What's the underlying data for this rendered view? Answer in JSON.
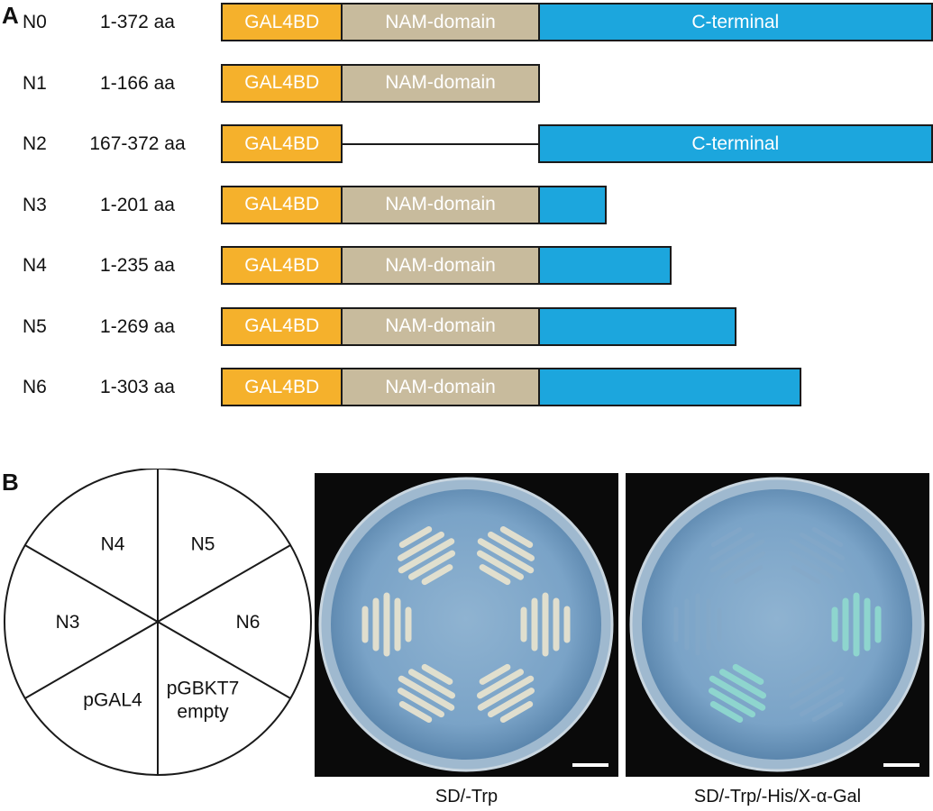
{
  "panel_a": {
    "letter": "A",
    "domain_colors": {
      "gal4bd": "#f5b12c",
      "nam": "#c8bb9d",
      "cterm": "#1ca6dd"
    },
    "constructs": [
      {
        "name": "N0",
        "range": "1-372 aa",
        "segments": [
          {
            "kind": "gal4bd",
            "label": "GAL4BD",
            "start": 0,
            "end": 63
          },
          {
            "kind": "nam",
            "label": "NAM-domain",
            "start": 63,
            "end": 166
          },
          {
            "kind": "cterm",
            "label": "C-terminal",
            "start": 166,
            "end": 372
          }
        ]
      },
      {
        "name": "N1",
        "range": "1-166 aa",
        "segments": [
          {
            "kind": "gal4bd",
            "label": "GAL4BD",
            "start": 0,
            "end": 63
          },
          {
            "kind": "nam",
            "label": "NAM-domain",
            "start": 63,
            "end": 166
          }
        ]
      },
      {
        "name": "N2",
        "range": "167-372 aa",
        "segments": [
          {
            "kind": "gal4bd",
            "label": "GAL4BD",
            "start": 0,
            "end": 63
          },
          {
            "kind": "linker",
            "label": "",
            "start": 63,
            "end": 166
          },
          {
            "kind": "cterm",
            "label": "C-terminal",
            "start": 166,
            "end": 372
          }
        ]
      },
      {
        "name": "N3",
        "range": "1-201 aa",
        "segments": [
          {
            "kind": "gal4bd",
            "label": "GAL4BD",
            "start": 0,
            "end": 63
          },
          {
            "kind": "nam",
            "label": "NAM-domain",
            "start": 63,
            "end": 166
          },
          {
            "kind": "cterm",
            "label": "",
            "start": 166,
            "end": 201
          }
        ]
      },
      {
        "name": "N4",
        "range": "1-235 aa",
        "segments": [
          {
            "kind": "gal4bd",
            "label": "GAL4BD",
            "start": 0,
            "end": 63
          },
          {
            "kind": "nam",
            "label": "NAM-domain",
            "start": 63,
            "end": 166
          },
          {
            "kind": "cterm",
            "label": "",
            "start": 166,
            "end": 235
          }
        ]
      },
      {
        "name": "N5",
        "range": "1-269 aa",
        "segments": [
          {
            "kind": "gal4bd",
            "label": "GAL4BD",
            "start": 0,
            "end": 63
          },
          {
            "kind": "nam",
            "label": "NAM-domain",
            "start": 63,
            "end": 166
          },
          {
            "kind": "cterm",
            "label": "",
            "start": 166,
            "end": 269
          }
        ]
      },
      {
        "name": "N6",
        "range": "1-303 aa",
        "segments": [
          {
            "kind": "gal4bd",
            "label": "GAL4BD",
            "start": 0,
            "end": 63
          },
          {
            "kind": "nam",
            "label": "NAM-domain",
            "start": 63,
            "end": 166
          },
          {
            "kind": "cterm",
            "label": "",
            "start": 166,
            "end": 303
          }
        ]
      }
    ]
  },
  "panel_b": {
    "letter": "B",
    "sectors": [
      {
        "lines": [
          "N5"
        ]
      },
      {
        "lines": [
          "N6"
        ]
      },
      {
        "lines": [
          "pGBKT7",
          "empty"
        ]
      },
      {
        "lines": [
          "pGAL4"
        ]
      },
      {
        "lines": [
          "N3"
        ]
      },
      {
        "lines": [
          "N4"
        ]
      }
    ],
    "plates": [
      {
        "caption": "SD/-Trp",
        "streak_color": "#e6e2cf"
      },
      {
        "caption": "SD/-Trp/-His/X-α-Gal",
        "streak_color": "#8fd8cf"
      }
    ]
  }
}
